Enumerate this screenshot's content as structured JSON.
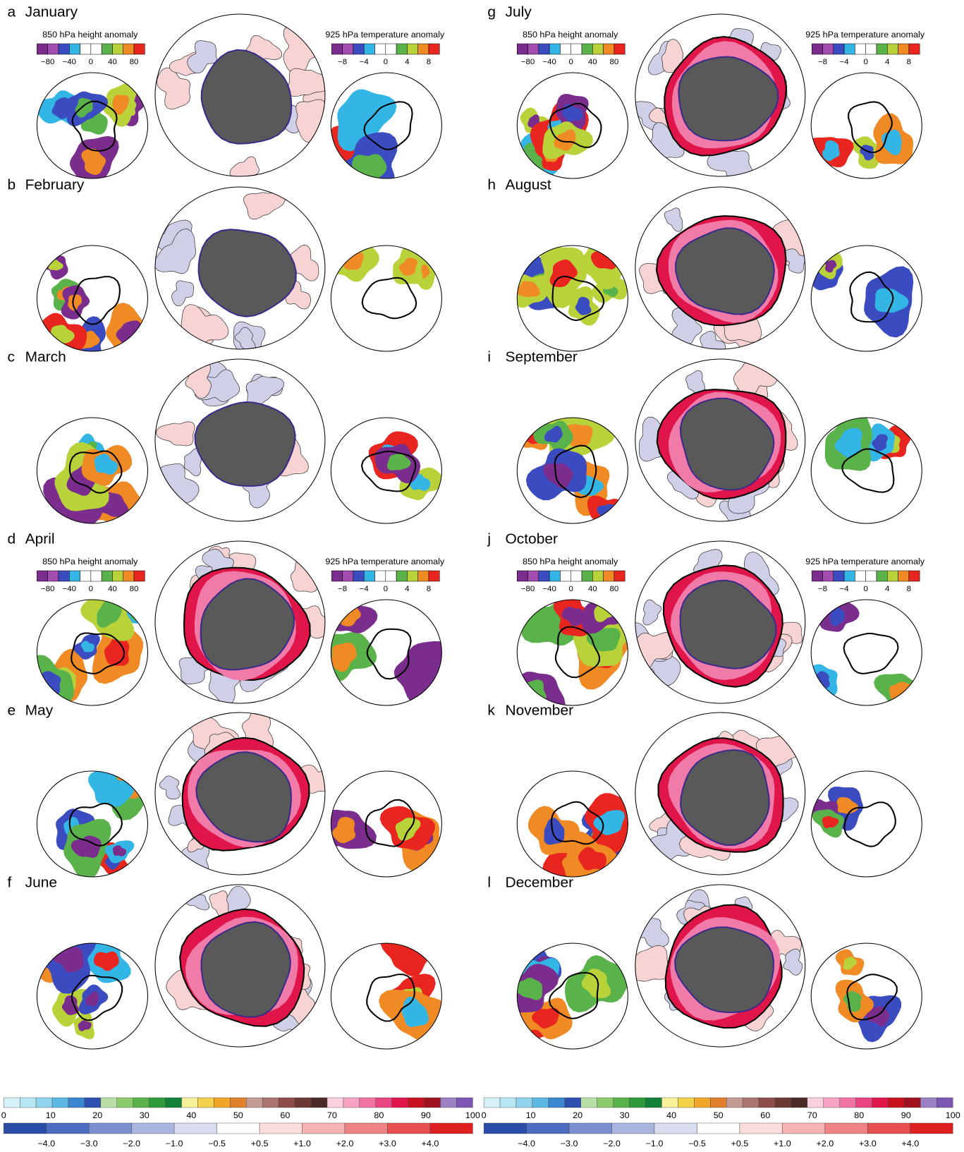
{
  "panels": [
    {
      "letter": "a",
      "month": "January",
      "legend": true
    },
    {
      "letter": "b",
      "month": "February",
      "legend": false
    },
    {
      "letter": "c",
      "month": "March",
      "legend": false
    },
    {
      "letter": "d",
      "month": "April",
      "legend": true
    },
    {
      "letter": "e",
      "month": "May",
      "legend": false
    },
    {
      "letter": "f",
      "month": "June",
      "legend": false
    },
    {
      "letter": "g",
      "month": "July",
      "legend": true
    },
    {
      "letter": "h",
      "month": "August",
      "legend": false
    },
    {
      "letter": "i",
      "month": "September",
      "legend": false
    },
    {
      "letter": "j",
      "month": "October",
      "legend": true
    },
    {
      "letter": "k",
      "month": "November",
      "legend": false
    },
    {
      "letter": "l",
      "month": "December",
      "legend": false
    }
  ],
  "legends": {
    "height": {
      "title": "850 hPa height anomaly",
      "ticks": [
        "−80",
        "−40",
        "0",
        "40",
        "80"
      ]
    },
    "temperature": {
      "title": "925 hPa temperature anomaly",
      "ticks": [
        "−8",
        "−4",
        "0",
        "4",
        "8"
      ]
    }
  },
  "colorbars": {
    "top_ticks": [
      "0",
      "10",
      "20",
      "30",
      "40",
      "50",
      "60",
      "70",
      "80",
      "90",
      "100"
    ],
    "bottom_ticks": [
      "−4.0",
      "−3.0",
      "−2.0",
      "−1.0",
      "−0.5",
      "+0.5",
      "+1.0",
      "+2.0",
      "+3.0",
      "+4.0"
    ]
  }
}
